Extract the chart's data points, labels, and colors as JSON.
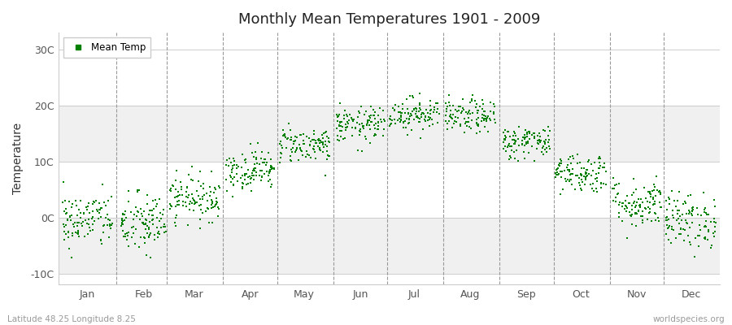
{
  "title": "Monthly Mean Temperatures 1901 - 2009",
  "ylabel": "Temperature",
  "xlabel_months": [
    "Jan",
    "Feb",
    "Mar",
    "Apr",
    "May",
    "Jun",
    "Jul",
    "Aug",
    "Sep",
    "Oct",
    "Nov",
    "Dec"
  ],
  "legend_label": "Mean Temp",
  "dot_color": "#008000",
  "background_color": "#ffffff",
  "plot_bg_color": "#ffffff",
  "yticks": [
    -10,
    0,
    10,
    20,
    30
  ],
  "ytick_labels": [
    "-10C",
    "0C",
    "10C",
    "20C",
    "30C"
  ],
  "ylim": [
    -12,
    33
  ],
  "xlim_start": 1,
  "xlim_end": 366,
  "subtitle_left": "Latitude 48.25 Longitude 8.25",
  "subtitle_right": "worldspecies.org",
  "monthly_means": [
    -0.5,
    -1.2,
    3.5,
    8.5,
    13.0,
    16.5,
    18.5,
    18.0,
    13.5,
    8.0,
    2.5,
    -0.5
  ],
  "monthly_stds": [
    2.5,
    2.8,
    2.0,
    1.8,
    1.6,
    1.6,
    1.5,
    1.5,
    1.5,
    1.8,
    2.2,
    2.5
  ],
  "n_years": 109,
  "seed": 42,
  "marker_size": 3.5,
  "grid_band_color": "#f0f0f0",
  "grid_line_color": "#bbbbbb",
  "dash_color": "#999999"
}
